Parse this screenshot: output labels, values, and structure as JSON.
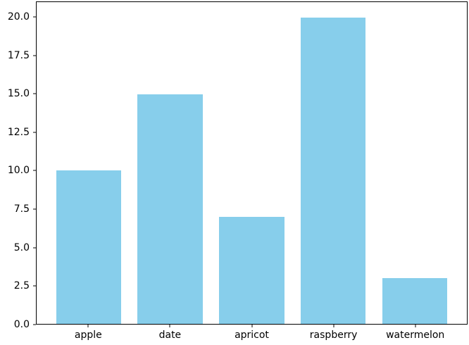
{
  "chart_data": {
    "type": "bar",
    "categories": [
      "apple",
      "date",
      "apricot",
      "raspberry",
      "watermelon"
    ],
    "values": [
      10,
      15,
      7,
      20,
      3
    ],
    "title": "",
    "xlabel": "",
    "ylabel": "",
    "ylim": [
      0,
      21
    ],
    "xlim": [
      -0.64,
      4.64
    ],
    "yticks": [
      0.0,
      2.5,
      5.0,
      7.5,
      10.0,
      12.5,
      15.0,
      17.5,
      20.0
    ],
    "ytick_labels": [
      "0.0",
      "2.5",
      "5.0",
      "7.5",
      "10.0",
      "12.5",
      "15.0",
      "17.5",
      "20.0"
    ],
    "bar_width_fraction": 0.8,
    "grid": false,
    "legend": null,
    "colors": {
      "bar": "#87CEEB",
      "spine": "#000000",
      "text": "#000000",
      "background": "#ffffff"
    }
  }
}
